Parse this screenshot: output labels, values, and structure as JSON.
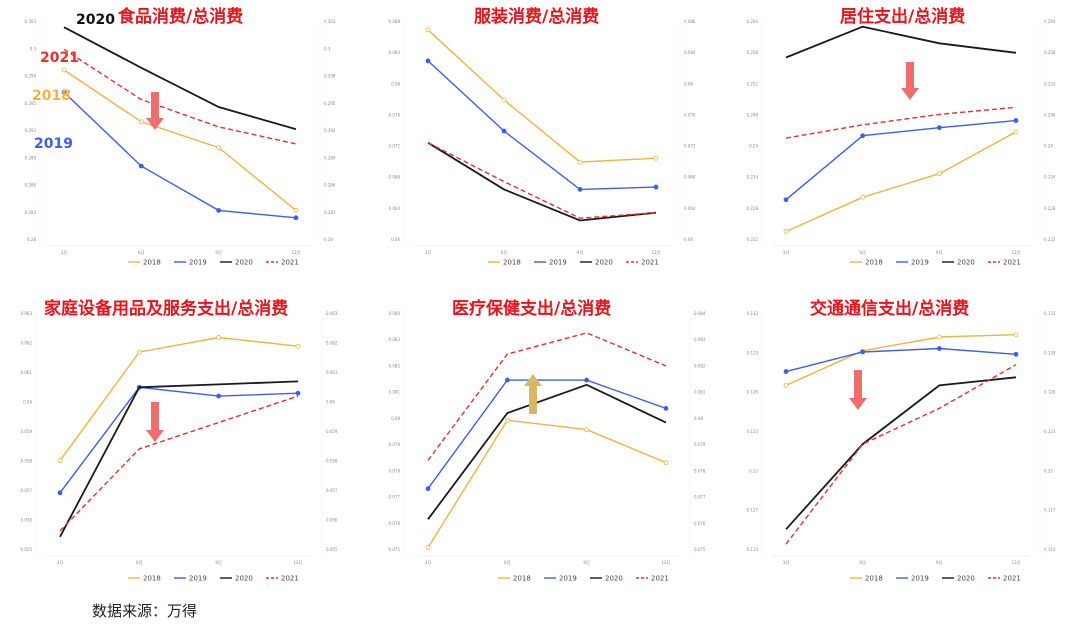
{
  "source_note": "数据来源：万得",
  "colors": {
    "2018": "#f2b341",
    "2019": "#3d5ef0",
    "2020": "#1a1a1a",
    "2021": "#ee2d2d",
    "title": "#e8141b",
    "arrow_down": "#f06d6d",
    "arrow_up": "#d9b768"
  },
  "chart_data": [
    {
      "type": "line",
      "title": "食品消费/总消费",
      "categories": [
        "3月",
        "6月",
        "9月",
        "12月"
      ],
      "ylim": [
        0.2755,
        0.305
      ],
      "yticks_left": [
        "0.303",
        "0.3",
        "0.298",
        "0.295",
        "0.292",
        "0.289",
        "0.286",
        "0.283",
        "0.28"
      ],
      "yticks_right": [
        "0.303",
        "0.3",
        "0.298",
        "0.295",
        "0.292",
        "0.289",
        "0.286",
        "0.283",
        "0.28"
      ],
      "series": [
        {
          "name": "2018",
          "values": [
            0.2985,
            0.2915,
            0.288,
            0.2795
          ]
        },
        {
          "name": "2019",
          "values": [
            0.2955,
            0.2855,
            0.2795,
            0.2785
          ]
        },
        {
          "name": "2020",
          "values": [
            0.3043,
            0.2988,
            0.2935,
            0.2905
          ]
        },
        {
          "name": "2021",
          "values": [
            0.3013,
            0.2945,
            0.2908,
            0.2885
          ]
        }
      ],
      "year_labels": [
        "2020",
        "2021",
        "2018",
        "2019"
      ],
      "arrow": "down"
    },
    {
      "type": "line",
      "title": "服装消费/总消费",
      "categories": [
        "3月",
        "6月",
        "9月",
        "12月"
      ],
      "ylim": [
        0.0595,
        0.0875
      ],
      "yticks_left": [
        "0.088",
        "0.084",
        "0.08",
        "0.076",
        "0.072",
        "0.068",
        "0.064",
        "0.06"
      ],
      "yticks_right": [
        "0.088",
        "0.084",
        "0.08",
        "0.076",
        "0.072",
        "0.068",
        "0.064",
        "0.06"
      ],
      "series": [
        {
          "name": "2018",
          "values": [
            0.0865,
            0.0775,
            0.0695,
            0.07
          ]
        },
        {
          "name": "2019",
          "values": [
            0.0825,
            0.0735,
            0.066,
            0.0663
          ]
        },
        {
          "name": "2020",
          "values": [
            0.072,
            0.066,
            0.062,
            0.063
          ]
        },
        {
          "name": "2021",
          "values": [
            0.072,
            0.067,
            0.0623,
            0.063
          ]
        }
      ],
      "year_labels": [],
      "arrow": ""
    },
    {
      "type": "line",
      "title": "居住支出/总消费",
      "categories": [
        "3月",
        "6月",
        "9月",
        "12月"
      ],
      "ylim": [
        0.22,
        0.266
      ],
      "yticks_left": [
        "0.264",
        "0.258",
        "0.252",
        "0.246",
        "0.24",
        "0.234",
        "0.228",
        "0.222"
      ],
      "yticks_right": [
        "0.264",
        "0.258",
        "0.252",
        "0.246",
        "0.24",
        "0.234",
        "0.228",
        "0.222"
      ],
      "series": [
        {
          "name": "2018",
          "values": [
            0.2218,
            0.229,
            0.234,
            0.2428
          ]
        },
        {
          "name": "2019",
          "values": [
            0.2285,
            0.242,
            0.2437,
            0.2452
          ]
        },
        {
          "name": "2020",
          "values": [
            0.2585,
            0.265,
            0.2615,
            0.2595
          ]
        },
        {
          "name": "2021",
          "values": [
            0.2415,
            0.2443,
            0.2465,
            0.248
          ]
        }
      ],
      "year_labels": [],
      "arrow": "down"
    },
    {
      "type": "line",
      "title": "家庭设备用品及服务支出/总消费",
      "categories": [
        "3月",
        "6月",
        "9月",
        "12月"
      ],
      "ylim": [
        0.05535,
        0.0634
      ],
      "yticks_left": [
        "0.063",
        "0.062",
        "0.061",
        "0.06",
        "0.059",
        "0.058",
        "0.057",
        "0.056",
        "0.055"
      ],
      "yticks_right": [
        "0.063",
        "0.062",
        "0.061",
        "0.06",
        "0.059",
        "0.058",
        "0.057",
        "0.056",
        "0.055"
      ],
      "series": [
        {
          "name": "2018",
          "values": [
            0.0584,
            0.0621,
            0.0626,
            0.0623
          ]
        },
        {
          "name": "2019",
          "values": [
            0.0573,
            0.0609,
            0.0606,
            0.0607
          ]
        },
        {
          "name": "2020",
          "values": [
            0.0558,
            0.0609,
            0.061,
            0.0611
          ]
        },
        {
          "name": "2021",
          "values": [
            0.056,
            0.0588,
            0.0597,
            0.0606
          ]
        }
      ],
      "year_labels": [],
      "arrow": "down"
    },
    {
      "type": "line",
      "title": "医疗保健支出/总消费",
      "categories": [
        "3月",
        "6月",
        "9月",
        "12月"
      ],
      "ylim": [
        0.0751,
        0.0851
      ],
      "yticks_left": [
        "0.084",
        "0.083",
        "0.082",
        "0.081",
        "0.08",
        "0.079",
        "0.078",
        "0.077",
        "0.076",
        "0.075"
      ],
      "yticks_right": [
        "0.084",
        "0.083",
        "0.082",
        "0.081",
        "0.08",
        "0.079",
        "0.078",
        "0.077",
        "0.076",
        "0.075"
      ],
      "series": [
        {
          "name": "2018",
          "values": [
            0.0752,
            0.0806,
            0.0802,
            0.0788
          ]
        },
        {
          "name": "2019",
          "values": [
            0.0777,
            0.0823,
            0.0823,
            0.0811
          ]
        },
        {
          "name": "2020",
          "values": [
            0.0764,
            0.0809,
            0.0821,
            0.0805
          ]
        },
        {
          "name": "2021",
          "values": [
            0.0789,
            0.0834,
            0.0843,
            0.0829
          ]
        }
      ],
      "year_labels": [],
      "arrow": "up"
    },
    {
      "type": "line",
      "title": "交通通信支出/总消费",
      "categories": [
        "3月",
        "6月",
        "9月",
        "12月"
      ],
      "ylim": [
        0.1135,
        0.134
      ],
      "yticks_left": [
        "0.132",
        "0.129",
        "0.126",
        "0.123",
        "0.12",
        "0.117",
        "0.114"
      ],
      "yticks_right": [
        "0.132",
        "0.129",
        "0.126",
        "0.123",
        "0.12",
        "0.117",
        "0.114"
      ],
      "series": [
        {
          "name": "2018",
          "values": [
            0.1278,
            0.1308,
            0.132,
            0.1322
          ]
        },
        {
          "name": "2019",
          "values": [
            0.129,
            0.1307,
            0.131,
            0.1305
          ]
        },
        {
          "name": "2020",
          "values": [
            0.1153,
            0.1227,
            0.1278,
            0.1285
          ]
        },
        {
          "name": "2021",
          "values": [
            0.114,
            0.1227,
            0.1258,
            0.1296
          ]
        }
      ],
      "year_labels": [],
      "arrow": "down"
    }
  ]
}
